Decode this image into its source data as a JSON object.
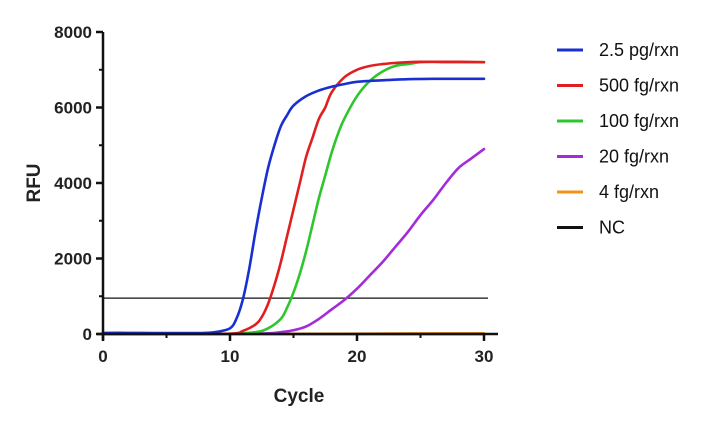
{
  "chart_data": {
    "type": "line",
    "title": "",
    "xlabel": "Cycle",
    "ylabel": "RFU",
    "xlim": [
      0,
      31
    ],
    "ylim": [
      0,
      8000
    ],
    "xticks": [
      0,
      10,
      20,
      30
    ],
    "yticks": [
      0,
      2000,
      4000,
      6000,
      8000
    ],
    "threshold": 950,
    "legend_position": "right",
    "series": [
      {
        "name": "2.5 pg/rxn",
        "color": "#1a2fd1",
        "x": [
          0,
          2,
          4,
          6,
          8,
          9,
          10,
          10.5,
          11,
          11.5,
          12,
          12.5,
          13,
          13.5,
          14,
          14.5,
          15,
          16,
          17,
          18,
          19,
          20,
          22,
          24,
          26,
          28,
          30
        ],
        "y": [
          30,
          30,
          25,
          25,
          30,
          60,
          150,
          400,
          900,
          1700,
          2700,
          3600,
          4400,
          5000,
          5500,
          5800,
          6050,
          6300,
          6450,
          6550,
          6620,
          6680,
          6720,
          6750,
          6760,
          6760,
          6760
        ]
      },
      {
        "name": "500 fg/rxn",
        "color": "#e02020",
        "x": [
          0,
          5,
          10,
          11,
          12,
          12.5,
          13,
          13.5,
          14,
          14.5,
          15,
          15.5,
          16,
          16.5,
          17,
          17.5,
          18,
          19,
          20,
          21,
          22,
          23,
          24,
          25,
          26,
          28,
          30
        ],
        "y": [
          0,
          0,
          10,
          80,
          250,
          450,
          800,
          1300,
          1900,
          2600,
          3300,
          4000,
          4700,
          5200,
          5700,
          6000,
          6400,
          6800,
          7000,
          7100,
          7150,
          7180,
          7200,
          7210,
          7210,
          7210,
          7200
        ]
      },
      {
        "name": "100 fg/rxn",
        "color": "#2ec62e",
        "x": [
          0,
          5,
          10,
          12,
          13,
          14,
          14.5,
          15,
          15.5,
          16,
          16.5,
          17,
          17.5,
          18,
          18.5,
          19,
          20,
          21,
          22,
          23,
          24,
          25,
          26,
          27,
          28,
          30
        ],
        "y": [
          0,
          0,
          5,
          50,
          150,
          400,
          700,
          1100,
          1600,
          2200,
          2900,
          3600,
          4200,
          4800,
          5300,
          5700,
          6300,
          6700,
          6950,
          7100,
          7150,
          7200,
          7210,
          7200,
          7200,
          7200
        ]
      },
      {
        "name": "20 fg/rxn",
        "color": "#a42cd8",
        "x": [
          0,
          5,
          10,
          13,
          14,
          15,
          16,
          17,
          18,
          19,
          20,
          21,
          22,
          23,
          24,
          25,
          26,
          27,
          28,
          29,
          30
        ],
        "y": [
          0,
          0,
          5,
          20,
          50,
          100,
          200,
          400,
          650,
          900,
          1200,
          1550,
          1900,
          2300,
          2700,
          3150,
          3550,
          4000,
          4400,
          4650,
          4900
        ]
      },
      {
        "name": "4 fg/rxn",
        "color": "#f29318",
        "x": [
          0,
          10,
          20,
          30
        ],
        "y": [
          0,
          0,
          10,
          20
        ]
      },
      {
        "name": "NC",
        "color": "#111111",
        "x": [
          0,
          10,
          20,
          30
        ],
        "y": [
          0,
          0,
          0,
          0
        ]
      }
    ]
  }
}
